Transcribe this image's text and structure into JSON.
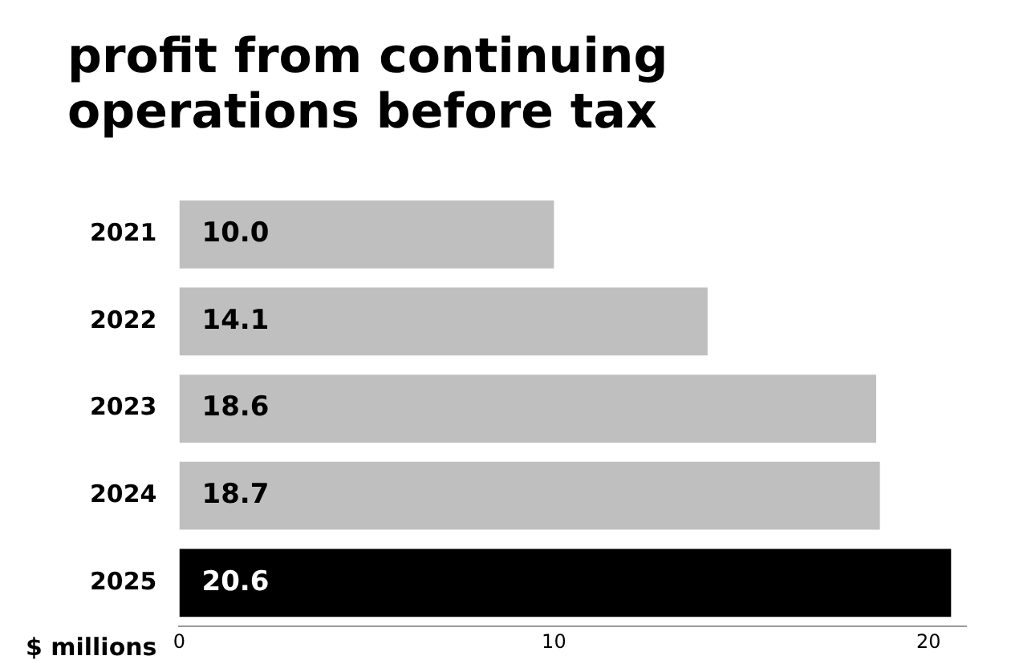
{
  "chart_data": {
    "type": "bar",
    "orientation": "horizontal",
    "title": "profit from continuing\noperations before tax",
    "xlabel": "$ millions",
    "categories": [
      "2021",
      "2022",
      "2023",
      "2024",
      "2025"
    ],
    "values": [
      10.0,
      14.1,
      18.6,
      18.7,
      20.6
    ],
    "value_labels": [
      "10.0",
      "14.1",
      "18.6",
      "18.7",
      "20.6"
    ],
    "colors": [
      "#bfbfbf",
      "#bfbfbf",
      "#bfbfbf",
      "#bfbfbf",
      "#000000"
    ],
    "xlim": [
      0,
      21
    ],
    "xticks": [
      0,
      10,
      20
    ],
    "grid": false,
    "legend": false
  }
}
